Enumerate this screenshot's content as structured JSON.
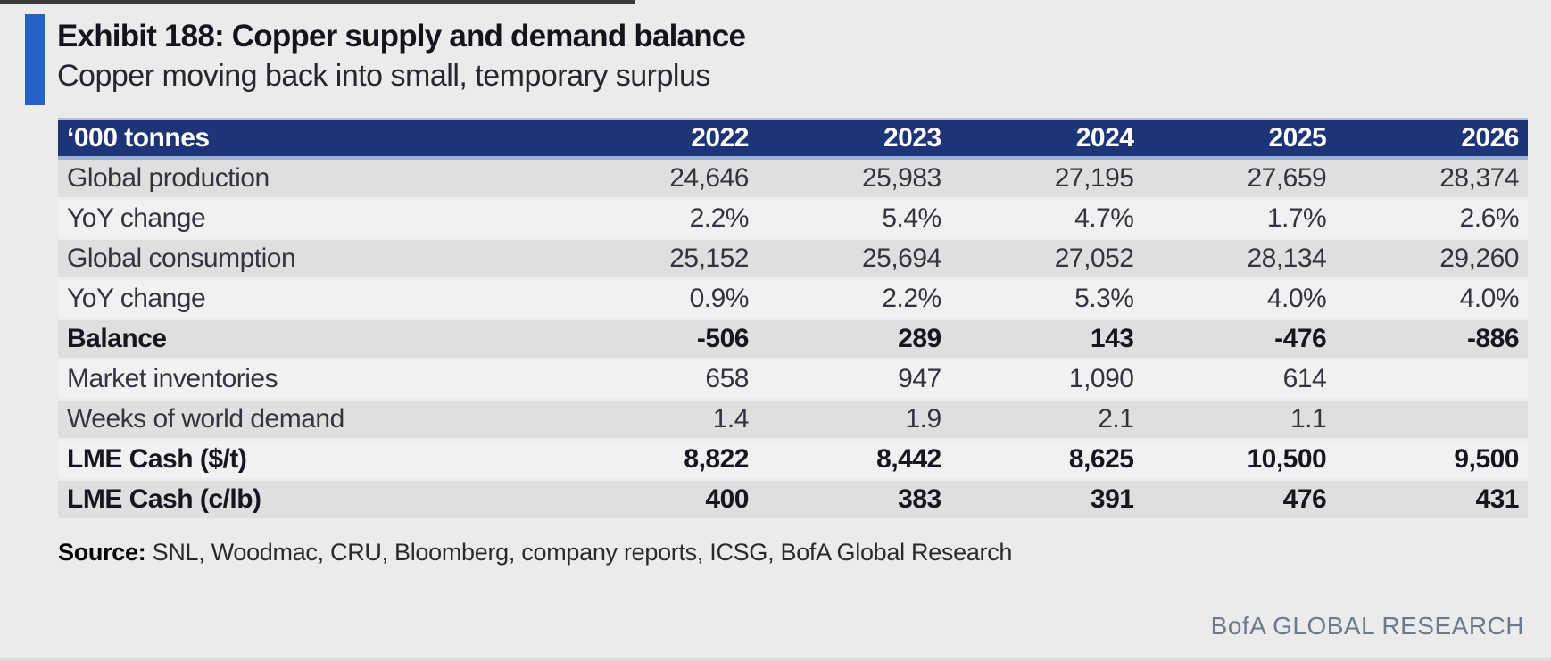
{
  "exhibit": {
    "title": "Exhibit 188: Copper supply and demand balance",
    "subtitle": "Copper moving back into small, temporary surplus"
  },
  "table": {
    "header": {
      "label": "‘000 tonnes",
      "years": [
        "2022",
        "2023",
        "2024",
        "2025",
        "2026"
      ]
    },
    "rows": [
      {
        "label": "Global production",
        "values": [
          "24,646",
          "25,983",
          "27,195",
          "27,659",
          "28,374"
        ],
        "shaded": true,
        "bold": false
      },
      {
        "label": "YoY change",
        "values": [
          "2.2%",
          "5.4%",
          "4.7%",
          "1.7%",
          "2.6%"
        ],
        "shaded": false,
        "bold": false
      },
      {
        "label": "Global consumption",
        "values": [
          "25,152",
          "25,694",
          "27,052",
          "28,134",
          "29,260"
        ],
        "shaded": true,
        "bold": false
      },
      {
        "label": "YoY change",
        "values": [
          "0.9%",
          "2.2%",
          "5.3%",
          "4.0%",
          "4.0%"
        ],
        "shaded": false,
        "bold": false
      },
      {
        "label": "Balance",
        "values": [
          "-506",
          "289",
          "143",
          "-476",
          "-886"
        ],
        "shaded": true,
        "bold": true,
        "highlight_negative": true
      },
      {
        "label": "Market inventories",
        "values": [
          "658",
          "947",
          "1,090",
          "614",
          ""
        ],
        "shaded": false,
        "bold": false
      },
      {
        "label": "Weeks of world demand",
        "values": [
          "1.4",
          "1.9",
          "2.1",
          "1.1",
          ""
        ],
        "shaded": true,
        "bold": false
      },
      {
        "label": "LME Cash ($/t)",
        "values": [
          "8,822",
          "8,442",
          "8,625",
          "10,500",
          "9,500"
        ],
        "shaded": false,
        "bold": true
      },
      {
        "label": "LME Cash (c/lb)",
        "values": [
          "400",
          "383",
          "391",
          "476",
          "431"
        ],
        "shaded": true,
        "bold": true
      }
    ]
  },
  "source": {
    "label": "Source:",
    "text": "SNL, Woodmac, CRU, Bloomberg, company reports, ICSG, BofA Global Research"
  },
  "footer": {
    "brand": "BofA GLOBAL RESEARCH"
  },
  "colors": {
    "page_background": "#ebebeb",
    "accent_blue": "#2562c4",
    "header_navy": "#1e3478",
    "header_border_light_blue": "#b3bfdb",
    "row_shaded": "#dfdfdf",
    "row_plain": "#f1f1f1",
    "negative_red": "#b31942",
    "brand_gray_blue": "#6e7a8b"
  },
  "chart_data": {
    "type": "table",
    "title": "Exhibit 188: Copper supply and demand balance",
    "subtitle": "Copper moving back into small, temporary surplus",
    "units": "'000 tonnes",
    "columns": [
      "‘000 tonnes",
      "2022",
      "2023",
      "2024",
      "2025",
      "2026"
    ],
    "series": [
      {
        "name": "Global production",
        "values": [
          24646,
          25983,
          27195,
          27659,
          28374
        ]
      },
      {
        "name": "YoY change (production)",
        "values": [
          "2.2%",
          "5.4%",
          "4.7%",
          "1.7%",
          "2.6%"
        ]
      },
      {
        "name": "Global consumption",
        "values": [
          25152,
          25694,
          27052,
          28134,
          29260
        ]
      },
      {
        "name": "YoY change (consumption)",
        "values": [
          "0.9%",
          "2.2%",
          "5.3%",
          "4.0%",
          "4.0%"
        ]
      },
      {
        "name": "Balance",
        "values": [
          -506,
          289,
          143,
          -476,
          -886
        ]
      },
      {
        "name": "Market inventories",
        "values": [
          658,
          947,
          1090,
          614,
          null
        ]
      },
      {
        "name": "Weeks of world demand",
        "values": [
          1.4,
          1.9,
          2.1,
          1.1,
          null
        ]
      },
      {
        "name": "LME Cash ($/t)",
        "values": [
          8822,
          8442,
          8625,
          10500,
          9500
        ]
      },
      {
        "name": "LME Cash (c/lb)",
        "values": [
          400,
          383,
          391,
          476,
          431
        ]
      }
    ]
  }
}
